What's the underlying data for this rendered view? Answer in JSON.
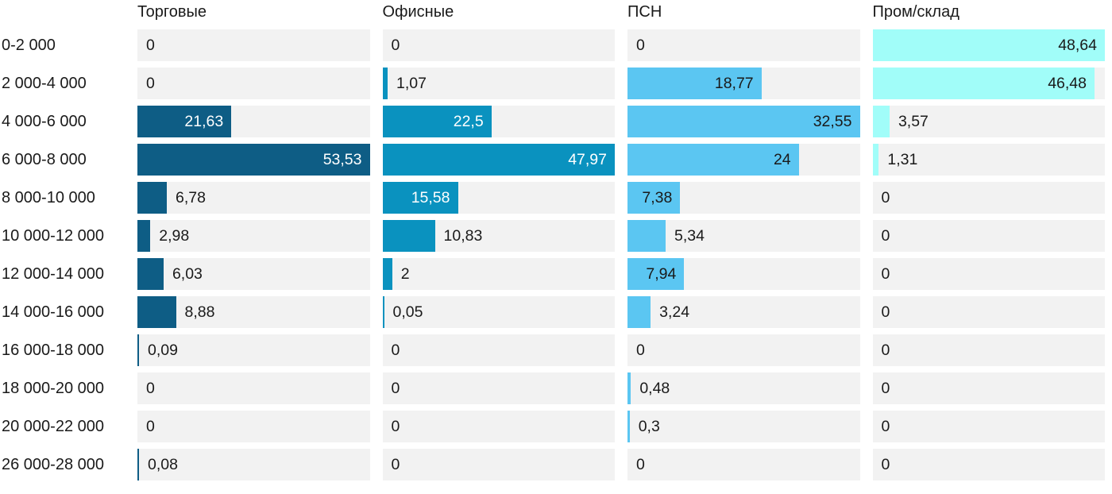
{
  "chart_data": {
    "type": "bar",
    "orientation": "horizontal",
    "title": "",
    "categories": [
      "0-2 000",
      "2 000-4 000",
      "4 000-6 000",
      "6 000-8 000",
      "8 000-10 000",
      "10 000-12 000",
      "12 000-14 000",
      "14 000-16 000",
      "16 000-18 000",
      "18 000-20 000",
      "20 000-22 000",
      "26 000-28 000"
    ],
    "series": [
      {
        "name": "Торговые",
        "color": "#0e5d85",
        "inside_label_color": "#ffffff",
        "values": [
          0,
          0,
          21.63,
          53.53,
          6.78,
          2.98,
          6.03,
          8.88,
          0.09,
          0,
          0,
          0.08
        ],
        "labels": [
          "0",
          "0",
          "21,63",
          "53,53",
          "6,78",
          "2,98",
          "6,03",
          "8,88",
          "0,09",
          "0",
          "0",
          "0,08"
        ]
      },
      {
        "name": "Офисные",
        "color": "#0a92bf",
        "inside_label_color": "#ffffff",
        "values": [
          0,
          1.07,
          22.5,
          47.97,
          15.58,
          10.83,
          2,
          0.05,
          0,
          0,
          0,
          0
        ],
        "labels": [
          "0",
          "1,07",
          "22,5",
          "47,97",
          "15,58",
          "10,83",
          "2",
          "0,05",
          "0",
          "0",
          "0",
          "0"
        ]
      },
      {
        "name": "ПСН",
        "color": "#5bc6f2",
        "inside_label_color": "#1a1a1a",
        "values": [
          0,
          18.77,
          32.55,
          24,
          7.38,
          5.34,
          7.94,
          3.24,
          0,
          0.48,
          0.3,
          0
        ],
        "labels": [
          "0",
          "18,77",
          "32,55",
          "24",
          "7,38",
          "5,34",
          "7,94",
          "3,24",
          "0",
          "0,48",
          "0,3",
          "0"
        ]
      },
      {
        "name": "Пром/склад",
        "color": "#a1fdf9",
        "inside_label_color": "#1a1a1a",
        "values": [
          48.64,
          46.48,
          3.57,
          1.31,
          0,
          0,
          0,
          0,
          0,
          0,
          0,
          0
        ],
        "labels": [
          "48,64",
          "46,48",
          "3,57",
          "1,31",
          "0",
          "0",
          "0",
          "0",
          "0",
          "0",
          "0",
          "0"
        ]
      }
    ],
    "scale": "per-column-max",
    "track_color": "#f2f2f2",
    "text_color": "#1a1a1a",
    "value_format": "comma-decimal",
    "grid": false,
    "legend_position": "column-headers"
  }
}
